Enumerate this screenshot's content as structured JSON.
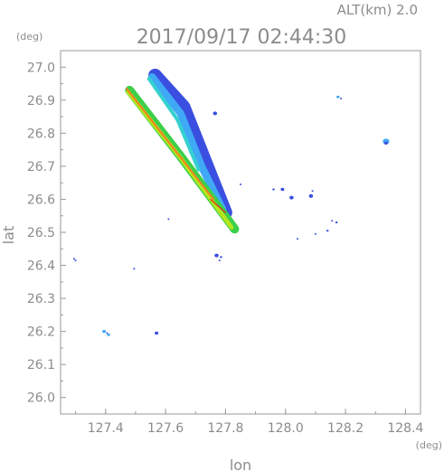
{
  "header": {
    "altitude_label": "ALT(km) 2.0",
    "timestamp": "2017/09/17 02:44:30"
  },
  "chart_data": {
    "type": "scatter",
    "xlabel": "lon",
    "ylabel": "lat",
    "xunit": "(deg)",
    "yunit": "(deg)",
    "xlim": [
      127.25,
      128.45
    ],
    "ylim": [
      25.95,
      27.05
    ],
    "xticks": [
      "127.4",
      "127.6",
      "127.8",
      "128.0",
      "128.2",
      "128.4"
    ],
    "yticks": [
      "26.0",
      "26.1",
      "26.2",
      "26.3",
      "26.4",
      "26.5",
      "26.6",
      "26.7",
      "26.8",
      "26.9",
      "27.0"
    ],
    "grid": false,
    "colors": {
      "blue": "#3a4fe0",
      "light_blue": "#3fa9f5",
      "cyan": "#35d0d0",
      "green": "#3cd04a",
      "yellow_green": "#b5e61d",
      "orange": "#f08020",
      "red": "#e03020"
    },
    "streaks": [
      {
        "name": "streak-upper",
        "layers": [
          {
            "color": "blue",
            "width": 0.045,
            "points": [
              [
                127.565,
                26.975
              ],
              [
                127.66,
                26.88
              ],
              [
                127.73,
                26.72
              ],
              [
                127.8,
                26.56
              ]
            ]
          },
          {
            "color": "light_blue",
            "width": 0.025,
            "points": [
              [
                127.555,
                26.97
              ],
              [
                127.65,
                26.86
              ],
              [
                127.72,
                26.7
              ],
              [
                127.79,
                26.57
              ]
            ]
          },
          {
            "color": "cyan",
            "width": 0.012,
            "points": [
              [
                127.545,
                26.965
              ],
              [
                127.64,
                26.84
              ],
              [
                127.71,
                26.69
              ]
            ]
          }
        ]
      },
      {
        "name": "streak-lower",
        "layers": [
          {
            "color": "green",
            "width": 0.03,
            "points": [
              [
                127.48,
                26.93
              ],
              [
                127.65,
                26.73
              ],
              [
                127.83,
                26.51
              ]
            ]
          },
          {
            "color": "yellow_green",
            "width": 0.014,
            "points": [
              [
                127.475,
                26.925
              ],
              [
                127.65,
                26.725
              ],
              [
                127.82,
                26.515
              ]
            ]
          },
          {
            "color": "orange",
            "width": 0.006,
            "points": [
              [
                127.47,
                26.935
              ],
              [
                127.76,
                26.6
              ]
            ]
          },
          {
            "color": "red",
            "width": 0.004,
            "points": [
              [
                127.75,
                26.6
              ],
              [
                127.8,
                26.56
              ]
            ]
          }
        ]
      }
    ],
    "blobs": [
      {
        "x": 127.295,
        "y": 26.42,
        "color": "blue",
        "r": 0.003
      },
      {
        "x": 127.3,
        "y": 26.415,
        "color": "blue",
        "r": 0.002
      },
      {
        "x": 127.495,
        "y": 26.39,
        "color": "blue",
        "r": 0.002
      },
      {
        "x": 127.395,
        "y": 26.2,
        "color": "light_blue",
        "r": 0.006
      },
      {
        "x": 127.41,
        "y": 26.19,
        "color": "light_blue",
        "r": 0.005
      },
      {
        "x": 127.405,
        "y": 26.195,
        "color": "blue",
        "r": 0.003
      },
      {
        "x": 127.57,
        "y": 26.195,
        "color": "blue",
        "r": 0.006
      },
      {
        "x": 127.61,
        "y": 26.54,
        "color": "blue",
        "r": 0.002
      },
      {
        "x": 127.77,
        "y": 26.43,
        "color": "blue",
        "r": 0.007
      },
      {
        "x": 127.785,
        "y": 26.425,
        "color": "blue",
        "r": 0.004
      },
      {
        "x": 127.78,
        "y": 26.415,
        "color": "blue",
        "r": 0.002
      },
      {
        "x": 127.765,
        "y": 26.86,
        "color": "blue",
        "r": 0.007
      },
      {
        "x": 127.85,
        "y": 26.645,
        "color": "blue",
        "r": 0.002
      },
      {
        "x": 127.96,
        "y": 26.63,
        "color": "blue",
        "r": 0.004
      },
      {
        "x": 127.99,
        "y": 26.63,
        "color": "blue",
        "r": 0.006
      },
      {
        "x": 128.02,
        "y": 26.605,
        "color": "blue",
        "r": 0.007
      },
      {
        "x": 128.085,
        "y": 26.61,
        "color": "blue",
        "r": 0.007
      },
      {
        "x": 128.09,
        "y": 26.625,
        "color": "blue",
        "r": 0.002
      },
      {
        "x": 128.04,
        "y": 26.48,
        "color": "blue",
        "r": 0.003
      },
      {
        "x": 128.1,
        "y": 26.495,
        "color": "blue",
        "r": 0.003
      },
      {
        "x": 128.14,
        "y": 26.505,
        "color": "blue",
        "r": 0.004
      },
      {
        "x": 128.155,
        "y": 26.535,
        "color": "blue",
        "r": 0.003
      },
      {
        "x": 128.17,
        "y": 26.53,
        "color": "blue",
        "r": 0.004
      },
      {
        "x": 128.175,
        "y": 26.91,
        "color": "light_blue",
        "r": 0.005
      },
      {
        "x": 128.185,
        "y": 26.905,
        "color": "blue",
        "r": 0.003
      },
      {
        "x": 128.335,
        "y": 26.775,
        "color": "light_blue",
        "r": 0.011
      },
      {
        "x": 128.335,
        "y": 26.77,
        "color": "blue",
        "r": 0.006
      }
    ]
  }
}
